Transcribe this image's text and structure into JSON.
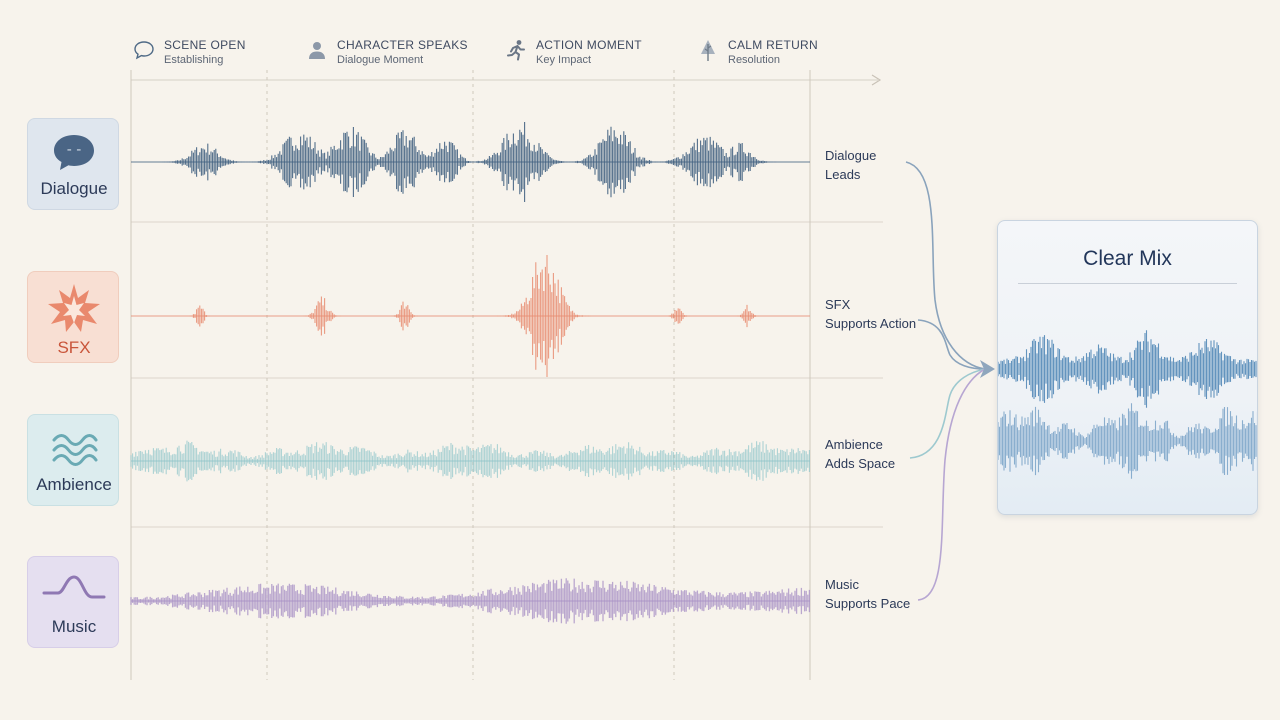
{
  "timeline": {
    "markers": [
      {
        "title": "SCENE OPEN",
        "subtitle": "Establishing",
        "icon": "speech-bubble-icon"
      },
      {
        "title": "CHARACTER SPEAKS",
        "subtitle": "Dialogue Moment",
        "icon": "person-icon"
      },
      {
        "title": "ACTION MOMENT",
        "subtitle": "Key Impact",
        "icon": "running-figure-icon"
      },
      {
        "title": "CALM RETURN",
        "subtitle": "Resolution",
        "icon": "tree-icon"
      }
    ]
  },
  "tracks": [
    {
      "name": "Dialogue",
      "role_line1": "Dialogue",
      "role_line2": "Leads",
      "color": "#3f5f80",
      "card_bg": "#dfe6ee",
      "icon": "speech-bubble-icon"
    },
    {
      "name": "SFX",
      "role_line1": "SFX",
      "role_line2": "Supports Action",
      "color": "#e88a6e",
      "card_bg": "#f8dfd3",
      "icon": "burst-icon"
    },
    {
      "name": "Ambience",
      "role_line1": "Ambience",
      "role_line2": "Adds Space",
      "color": "#8cc3c9",
      "card_bg": "#dcecee",
      "icon": "waves-icon"
    },
    {
      "name": "Music",
      "role_line1": "Music",
      "role_line2": "Supports Pace",
      "color": "#a58ec4",
      "card_bg": "#e5dff0",
      "icon": "curve-icon"
    }
  ],
  "mix": {
    "title": "Clear Mix",
    "color": "#4a82b4"
  }
}
